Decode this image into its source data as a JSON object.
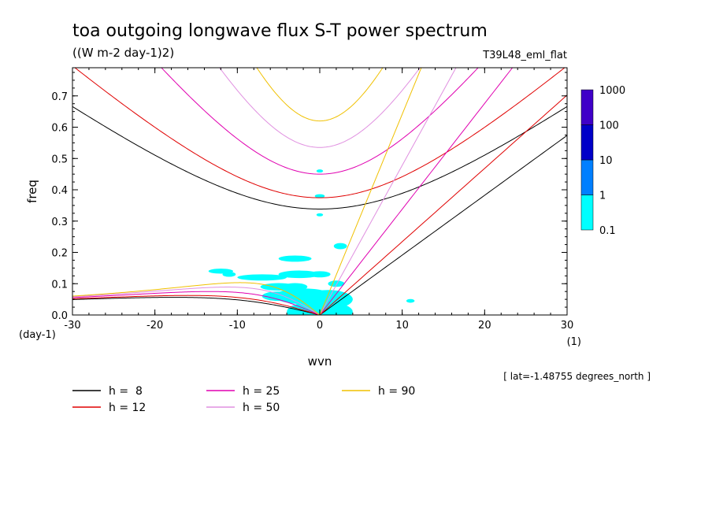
{
  "chart_data": {
    "type": "line",
    "title": "toa outgoing longwave flux S-T power spectrum",
    "units": "((W m-2 day-1)2)",
    "run_label": "T39L48_eml_flat",
    "xlabel": "wvn",
    "ylabel": "freq",
    "x_unit": "(1)",
    "y_unit": "(day-1)",
    "xlim": [
      -30,
      30
    ],
    "ylim": [
      0,
      0.79
    ],
    "x_ticks": [
      "-30",
      "-20",
      "-10",
      "0",
      "10",
      "20",
      "30"
    ],
    "y_ticks": [
      "0.0",
      "0.1",
      "0.2",
      "0.3",
      "0.4",
      "0.5",
      "0.6",
      "0.7"
    ],
    "annotation": "[ lat=-1.48755 degrees_north ]",
    "colorbar": {
      "levels": [
        "0.1",
        "1",
        "10",
        "100",
        "1000"
      ],
      "colors": [
        "#00ffff",
        "#007fff",
        "#0000c8",
        "#3f00c8"
      ]
    },
    "equivalent_depths": [
      {
        "name": "h =  8",
        "h": 8,
        "color": "#000000"
      },
      {
        "name": "h = 12",
        "h": 12,
        "color": "#e00000"
      },
      {
        "name": "h = 25",
        "h": 25,
        "color": "#e000b0"
      },
      {
        "name": "h = 50",
        "h": 50,
        "color": "#e090e0"
      },
      {
        "name": "h = 90",
        "h": 90,
        "color": "#f0c000"
      }
    ],
    "spectrum_blobs": [
      {
        "k": 0,
        "f": 0.01,
        "rk": 4,
        "rf": 0.035
      },
      {
        "k": 1,
        "f": 0.05,
        "rk": 3,
        "rf": 0.03
      },
      {
        "k": -2,
        "f": 0.06,
        "rk": 3.5,
        "rf": 0.025
      },
      {
        "k": -5,
        "f": 0.06,
        "rk": 2,
        "rf": 0.015
      },
      {
        "k": -7,
        "f": 0.12,
        "rk": 3,
        "rf": 0.01
      },
      {
        "k": -2.5,
        "f": 0.13,
        "rk": 2.5,
        "rf": 0.012
      },
      {
        "k": 0,
        "f": 0.13,
        "rk": 1.3,
        "rf": 0.01
      },
      {
        "k": -3,
        "f": 0.18,
        "rk": 2,
        "rf": 0.01
      },
      {
        "k": -12,
        "f": 0.14,
        "rk": 1.5,
        "rf": 0.008
      },
      {
        "k": -5,
        "f": 0.09,
        "rk": 2.2,
        "rf": 0.012
      },
      {
        "k": -3,
        "f": 0.09,
        "rk": 1.5,
        "rf": 0.012
      },
      {
        "k": 2,
        "f": 0.1,
        "rk": 1,
        "rf": 0.01
      },
      {
        "k": 2.5,
        "f": 0.22,
        "rk": 0.8,
        "rf": 0.01
      },
      {
        "k": 0,
        "f": 0.38,
        "rk": 0.6,
        "rf": 0.006
      },
      {
        "k": 0,
        "f": 0.46,
        "rk": 0.4,
        "rf": 0.005
      },
      {
        "k": 11,
        "f": 0.045,
        "rk": 0.5,
        "rf": 0.006
      },
      {
        "k": -11,
        "f": 0.13,
        "rk": 0.8,
        "rf": 0.008
      },
      {
        "k": 0,
        "f": 0.32,
        "rk": 0.4,
        "rf": 0.005
      }
    ]
  }
}
